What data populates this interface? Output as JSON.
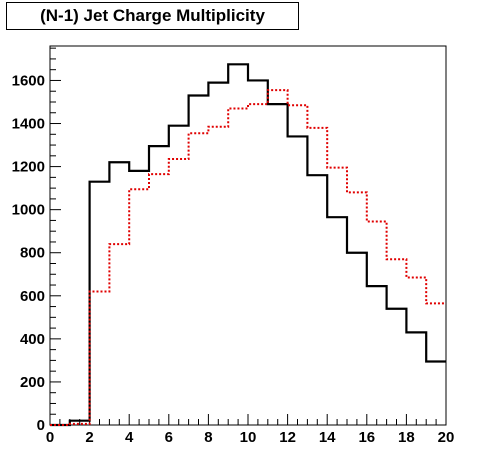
{
  "chart_data": {
    "type": "line",
    "title": "(N-1) Jet Charge Multiplicity",
    "xlabel": "",
    "ylabel": "",
    "xlim": [
      0,
      20
    ],
    "ylim": [
      0,
      1760
    ],
    "x_ticks": [
      0,
      2,
      4,
      6,
      8,
      10,
      12,
      14,
      16,
      18,
      20
    ],
    "y_ticks": [
      0,
      200,
      400,
      600,
      800,
      1000,
      1200,
      1400,
      1600
    ],
    "grid": false,
    "legend": "none",
    "bin_edges": [
      0,
      1,
      2,
      3,
      4,
      5,
      6,
      7,
      8,
      9,
      10,
      11,
      12,
      13,
      14,
      15,
      16,
      17,
      18,
      19,
      20
    ],
    "series": [
      {
        "style": "solid",
        "color": "#000000",
        "values": [
          0,
          20,
          1130,
          1220,
          1180,
          1295,
          1390,
          1530,
          1590,
          1675,
          1600,
          1490,
          1340,
          1160,
          965,
          800,
          645,
          540,
          430,
          295
        ]
      },
      {
        "style": "dashed",
        "color": "#e00000",
        "values": [
          0,
          5,
          620,
          840,
          1095,
          1165,
          1235,
          1355,
          1385,
          1470,
          1490,
          1555,
          1485,
          1380,
          1195,
          1080,
          945,
          770,
          685,
          565
        ]
      }
    ]
  }
}
